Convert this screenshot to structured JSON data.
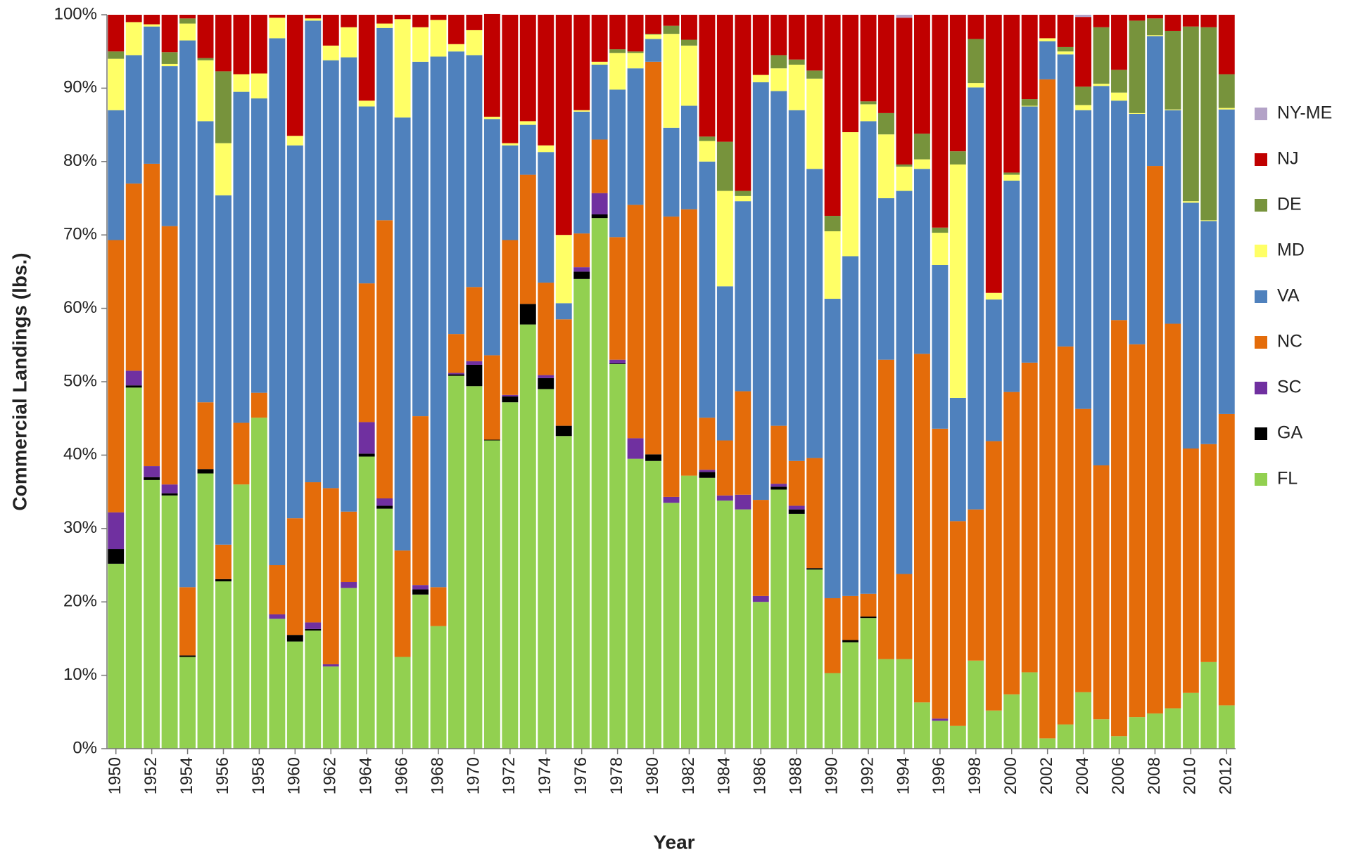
{
  "chart_data": {
    "type": "stacked-bar-100",
    "x_label": "Year",
    "y_label": "Commercial Landings (lbs.)",
    "categories": [
      "1950",
      null,
      "1952",
      null,
      "1954",
      null,
      "1956",
      null,
      "1958",
      null,
      "1960",
      null,
      "1962",
      null,
      "1964",
      null,
      "1966",
      null,
      "1968",
      null,
      "1970",
      null,
      "1972",
      null,
      "1974",
      null,
      "1976",
      null,
      "1978",
      null,
      "1980",
      null,
      "1982",
      null,
      "1984",
      null,
      "1986",
      null,
      "1988",
      null,
      "1990",
      null,
      "1992",
      null,
      "1994",
      null,
      "1996",
      null,
      "1998",
      null,
      "2000",
      null,
      "2002",
      null,
      "2004",
      null,
      "2006",
      null,
      "2008",
      null,
      "2010",
      null,
      "2012"
    ],
    "ylim": [
      0,
      100
    ],
    "yticks": [
      {
        "value": 0,
        "label": "0%"
      },
      {
        "value": 10,
        "label": "10%"
      },
      {
        "value": 20,
        "label": "20%"
      },
      {
        "value": 30,
        "label": "30%"
      },
      {
        "value": 40,
        "label": "40%"
      },
      {
        "value": 50,
        "label": "50%"
      },
      {
        "value": 60,
        "label": "60%"
      },
      {
        "value": 70,
        "label": "70%"
      },
      {
        "value": 80,
        "label": "80%"
      },
      {
        "value": 90,
        "label": "90%"
      },
      {
        "value": 100,
        "label": "100%"
      }
    ],
    "legend_position": "right",
    "series": [
      {
        "name": "FL",
        "color": "#92d050",
        "values": [
          25.2,
          49.2,
          36.6,
          34.5,
          12.5,
          37.5,
          22.8,
          36,
          45.1,
          17.7,
          14.6,
          16.1,
          11.2,
          21.9,
          39.8,
          32.7,
          12.5,
          21,
          16.7,
          50.8,
          49.4,
          42,
          47.2,
          57.8,
          49,
          42.6,
          64,
          72.3,
          52.4,
          39.5,
          39.2,
          33.5,
          37.2,
          36.9,
          33.8,
          32.6,
          20,
          35.3,
          32,
          24.4,
          10.3,
          14.5,
          17.8,
          12.2,
          12.2,
          6.3,
          3.8,
          3.1,
          12,
          5.2,
          7.4,
          10.4,
          1.4,
          3.3,
          7.7,
          4,
          1.7,
          4.3,
          4.8,
          5.5,
          7.6,
          11.8,
          5.9
        ]
      },
      {
        "name": "GA",
        "color": "#000000",
        "values": [
          2.0,
          0.3,
          0.4,
          0.3,
          0.2,
          0.6,
          0.3,
          0,
          0,
          0,
          0.9,
          0.2,
          0,
          0,
          0.4,
          0.4,
          0,
          0.7,
          0,
          0.2,
          2.9,
          0.1,
          0.8,
          2.8,
          1.5,
          1.4,
          1,
          0.5,
          0.1,
          0,
          0.9,
          0,
          0,
          0.8,
          0,
          0,
          0,
          0.4,
          0.6,
          0.2,
          0,
          0.3,
          0.2,
          0,
          0,
          0,
          0,
          0,
          0,
          0,
          0,
          0,
          0,
          0,
          0,
          0,
          0,
          0,
          0,
          0,
          0,
          0,
          0
        ]
      },
      {
        "name": "SC",
        "color": "#7030a0",
        "values": [
          5.0,
          2.0,
          1.5,
          1.2,
          0,
          0,
          0,
          0,
          0,
          0.6,
          0,
          0.9,
          0.3,
          0.8,
          4.3,
          1,
          0,
          0.6,
          0,
          0.2,
          0.5,
          0,
          0.2,
          0,
          0.4,
          0,
          0.6,
          2.9,
          0.5,
          2.8,
          0,
          0.8,
          0,
          0.3,
          0.7,
          2,
          0.8,
          0.4,
          0.5,
          0,
          0,
          0,
          0,
          0,
          0,
          0,
          0.3,
          0,
          0,
          0,
          0,
          0,
          0,
          0,
          0,
          0,
          0,
          0,
          0,
          0,
          0,
          0,
          0
        ]
      },
      {
        "name": "NC",
        "color": "#e46c0a",
        "values": [
          37.1,
          25.5,
          41.2,
          35.2,
          9.3,
          9.1,
          4.7,
          8.4,
          3.4,
          6.7,
          15.9,
          19.1,
          24,
          9.6,
          18.9,
          37.9,
          14.5,
          23,
          5.3,
          5.3,
          10.1,
          11.5,
          21.1,
          17.6,
          12.6,
          14.5,
          4.6,
          7.3,
          16.7,
          31.8,
          53.5,
          38.2,
          36.3,
          7.1,
          7.5,
          14.1,
          13.1,
          7.9,
          6.1,
          15,
          10.2,
          6,
          3.1,
          40.8,
          11.6,
          47.5,
          39.5,
          27.9,
          20.6,
          36.7,
          41.2,
          42.2,
          89.8,
          51.5,
          38.6,
          34.6,
          56.7,
          50.8,
          74.6,
          52.4,
          33.3,
          29.7,
          39.7
        ]
      },
      {
        "name": "VA",
        "color": "#4f81bd",
        "values": [
          17.7,
          17.5,
          18.7,
          21.8,
          74.5,
          38.3,
          47.6,
          45.1,
          40.1,
          71.8,
          50.8,
          62.9,
          58.3,
          61.9,
          24.1,
          26.2,
          59,
          48.3,
          72.3,
          38.5,
          31.6,
          32.2,
          12.9,
          6.8,
          17.8,
          2.2,
          16.6,
          10.2,
          20.1,
          18.6,
          3.1,
          12.1,
          14.1,
          34.9,
          21,
          25.9,
          56.9,
          45.6,
          47.8,
          39.4,
          40.8,
          46.3,
          64.4,
          22,
          52.2,
          25.2,
          22.3,
          16.8,
          57.5,
          19.3,
          28.8,
          34.9,
          5.2,
          39.8,
          40.7,
          51.7,
          29.9,
          31.4,
          17.7,
          29.1,
          33.5,
          30.4,
          41.5
        ]
      },
      {
        "name": "MD",
        "color": "#ffff66",
        "values": [
          7.0,
          4.5,
          0.3,
          0.3,
          2.3,
          8.3,
          7.1,
          2.4,
          3.4,
          2.8,
          1.3,
          0.3,
          2,
          4.1,
          0.8,
          0.6,
          13.4,
          4.7,
          5,
          1,
          3.4,
          0.3,
          0.3,
          0.5,
          0.9,
          9.3,
          0.2,
          0.4,
          5,
          2.1,
          0.6,
          12.8,
          8.2,
          2.8,
          13,
          0.7,
          1,
          3.1,
          6.2,
          12.3,
          9.2,
          16.9,
          2.3,
          8.7,
          3.3,
          1.3,
          4.4,
          31.8,
          0.6,
          0.9,
          0.8,
          0.1,
          0.4,
          0.4,
          0.7,
          0.3,
          1.1,
          0.1,
          0.1,
          0.1,
          0.2,
          0.1,
          0.2
        ]
      },
      {
        "name": "DE",
        "color": "#77933c",
        "values": [
          1.0,
          0,
          0,
          1.6,
          0.7,
          0.3,
          9.8,
          0,
          0,
          0,
          0,
          0,
          0,
          0,
          0,
          0,
          0,
          0,
          0,
          0,
          0,
          0,
          0,
          0,
          0,
          0,
          0,
          0,
          0.5,
          0.2,
          0.1,
          1.1,
          0.8,
          0.6,
          6.7,
          0.7,
          0,
          1.8,
          0.7,
          1.1,
          2.1,
          0,
          0.4,
          2.9,
          0.3,
          3.5,
          0.7,
          1.8,
          6,
          0,
          0.3,
          0.9,
          0,
          0.6,
          2.5,
          7.7,
          3.1,
          12.6,
          2.3,
          10.7,
          23.8,
          26.3,
          4.6
        ]
      },
      {
        "name": "NJ",
        "color": "#c00000",
        "values": [
          5.0,
          1,
          1.3,
          5.1,
          0.5,
          5.9,
          7.7,
          8.1,
          8,
          0.4,
          16.5,
          0.5,
          4.2,
          1.7,
          11.7,
          1.2,
          0.6,
          1.7,
          0.7,
          4,
          2.1,
          14,
          17.5,
          14.5,
          17.8,
          30,
          13,
          6.4,
          4.7,
          5,
          2.6,
          1.5,
          3.4,
          16.6,
          17.3,
          24,
          8.2,
          5.5,
          6.1,
          7.6,
          27.4,
          16,
          11.8,
          13.4,
          20,
          16.2,
          29,
          18.6,
          3.3,
          37.9,
          21.5,
          11.5,
          3.2,
          4.4,
          9.5,
          1.7,
          7.5,
          0.8,
          0.5,
          2.2,
          1.6,
          1.7,
          8.1
        ]
      },
      {
        "name": "NY-ME",
        "color": "#b3a2c7",
        "values": [
          0,
          0,
          0,
          0,
          0,
          0,
          0,
          0,
          0,
          0,
          0,
          0,
          0,
          0,
          0,
          0,
          0,
          0,
          0,
          0,
          0,
          0,
          0,
          0,
          0,
          0,
          0,
          0,
          0,
          0,
          0,
          0,
          0,
          0,
          0,
          0,
          0,
          0,
          0,
          0,
          0,
          0,
          0,
          0,
          0.4,
          0,
          0,
          0,
          0,
          0,
          0,
          0,
          0,
          0,
          0.3,
          0,
          0,
          0,
          0,
          0,
          0,
          0,
          0
        ]
      }
    ]
  }
}
